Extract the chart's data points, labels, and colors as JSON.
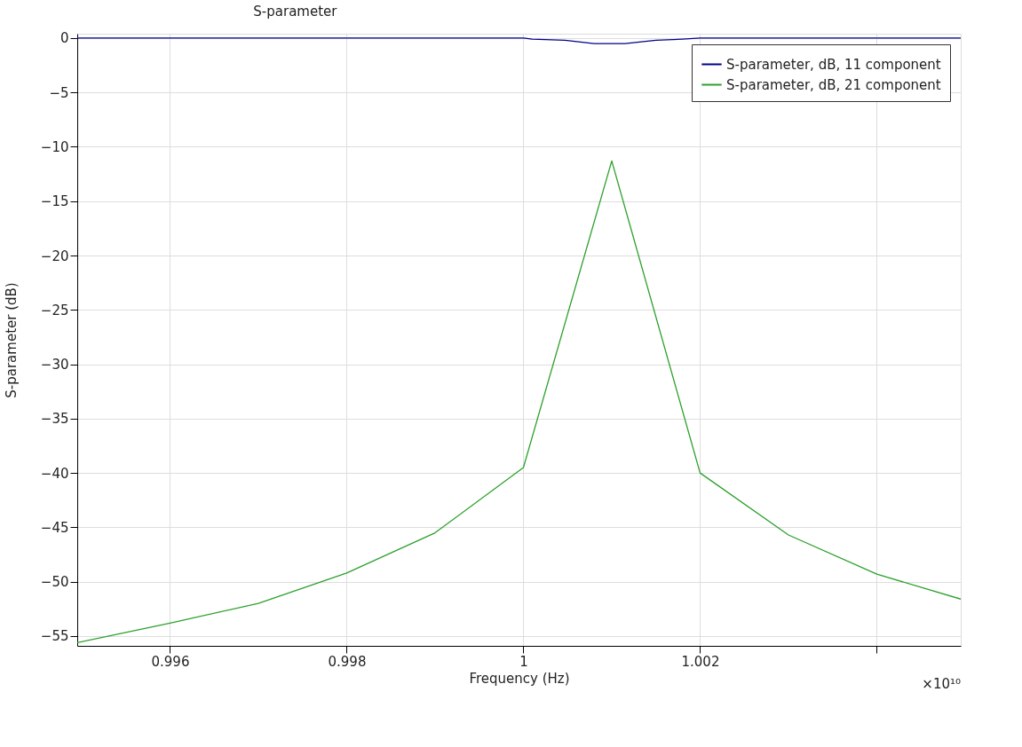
{
  "chart_data": {
    "type": "line",
    "title": "S-parameter",
    "xlabel": "Frequency (Hz)",
    "ylabel": "S-parameter (dB)",
    "annotations": [
      "×10¹⁰"
    ],
    "xlim": [
      0.99495,
      1.00495
    ],
    "ylim": [
      -55.9,
      0.4
    ],
    "xticks": [
      0.996,
      0.998,
      1,
      1.002,
      {
        "value": 1.004,
        "label": null
      }
    ],
    "yticks": [
      0,
      -5,
      -10,
      -15,
      -20,
      -25,
      -30,
      -35,
      -40,
      -45,
      -50,
      -55
    ],
    "grid": true,
    "legend": "top right",
    "marker": "none",
    "line_style": "solid",
    "series": [
      {
        "name": "S-parameter, dB, 11 component",
        "color": "#00008b",
        "x": [
          0.99495,
          0.996,
          0.998,
          1.0,
          1.0001,
          1.00047,
          1.0008,
          1.00115,
          1.0015,
          1.0018,
          1.002,
          1.004,
          1.00495
        ],
        "values": [
          0,
          0,
          0,
          0,
          -0.1,
          -0.2,
          -0.5,
          -0.5,
          -0.2,
          -0.1,
          0,
          0,
          0
        ]
      },
      {
        "name": "S-parameter, dB, 21 component",
        "color": "#2ca02c",
        "x": [
          0.99495,
          0.996,
          0.997,
          0.998,
          0.999,
          1.0,
          1.001,
          1.002,
          1.003,
          1.004,
          1.00495
        ],
        "values": [
          -55.6,
          -53.8,
          -52.0,
          -49.2,
          -45.5,
          -39.5,
          -11.3,
          -40.0,
          -45.7,
          -49.3,
          -51.6
        ]
      }
    ]
  }
}
